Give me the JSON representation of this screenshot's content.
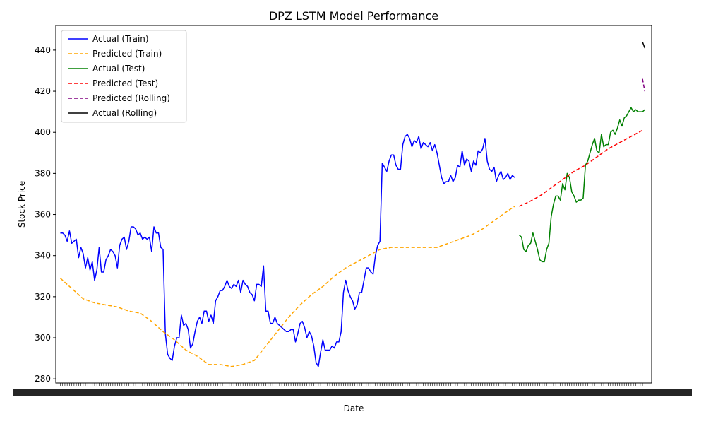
{
  "chart_data": {
    "type": "line",
    "title": "DPZ LSTM Model Performance",
    "xlabel": "Date",
    "ylabel": "Stock Price",
    "ylim": [
      278,
      452
    ],
    "yticks": [
      280,
      300,
      320,
      340,
      360,
      380,
      400,
      420,
      440
    ],
    "grid": false,
    "legend_position": "top-left",
    "series": [
      {
        "name": "Actual (Train)",
        "color": "#0000ff",
        "style": "solid",
        "x": [
          0,
          1,
          2,
          3,
          4,
          5,
          6,
          7,
          8,
          9,
          10,
          11,
          12,
          13,
          14,
          15,
          16,
          17,
          18,
          19,
          20,
          21,
          22,
          23,
          24,
          25,
          26,
          27,
          28,
          29,
          30,
          31,
          32,
          33,
          34,
          35,
          36,
          37,
          38,
          39,
          40,
          41,
          42,
          43,
          44,
          45,
          46,
          47,
          48,
          49,
          50,
          51,
          52,
          53,
          54,
          55,
          56,
          57,
          58,
          59,
          60,
          61,
          62,
          63,
          64,
          65,
          66,
          67,
          68,
          69,
          70,
          71,
          72,
          73,
          74,
          75,
          76,
          77,
          78,
          79,
          80,
          81,
          82,
          83,
          84,
          85,
          86,
          87,
          88,
          89,
          90,
          91,
          92,
          93,
          94,
          95,
          96,
          97,
          98,
          99,
          100,
          101,
          102,
          103,
          104,
          105,
          106,
          107,
          108,
          109,
          110,
          111,
          112,
          113,
          114,
          115,
          116,
          117,
          118,
          119,
          120,
          121,
          122,
          123,
          124,
          125,
          126,
          127,
          128,
          129,
          130,
          131,
          132,
          133,
          134,
          135,
          136,
          137,
          138,
          139,
          140,
          141,
          142,
          143,
          144,
          145,
          146,
          147,
          148,
          149,
          150,
          151,
          152,
          153,
          154,
          155,
          156,
          157,
          158,
          159,
          160,
          161,
          162,
          163,
          164,
          165,
          166,
          167,
          168,
          169,
          170,
          171,
          172,
          173,
          174,
          175,
          176,
          177,
          178,
          179,
          180,
          181,
          182,
          183,
          184,
          185,
          186,
          187,
          188,
          189,
          190,
          191,
          192,
          193,
          194,
          195,
          196,
          197,
          198,
          199
        ],
        "y": [
          351,
          351,
          350,
          347,
          352,
          346,
          347,
          348,
          339,
          344,
          341,
          334,
          339,
          333,
          337,
          328,
          333,
          344,
          332,
          332,
          338,
          340,
          343,
          342,
          340,
          334,
          345,
          348,
          349,
          343,
          347,
          354,
          354,
          353,
          350,
          351,
          348,
          349,
          348,
          349,
          342,
          354,
          351,
          351,
          344,
          343,
          302,
          292,
          290,
          289,
          296,
          300,
          300,
          311,
          306,
          307,
          304,
          295,
          297,
          303,
          308,
          310,
          307,
          313,
          313,
          308,
          311,
          307,
          318,
          320,
          323,
          323,
          325,
          328,
          325,
          324,
          326,
          325,
          328,
          322,
          328,
          326,
          325,
          322,
          321,
          318,
          326,
          326,
          325,
          335,
          313,
          313,
          307,
          307,
          310,
          307,
          306,
          305,
          304,
          303,
          303,
          304,
          304,
          298,
          302,
          307,
          308,
          305,
          300,
          303,
          301,
          296,
          288,
          286,
          293,
          299,
          294,
          294,
          294,
          296,
          295,
          298,
          298,
          303,
          322,
          328,
          323,
          320,
          318,
          314,
          316,
          322,
          322,
          328,
          334,
          334,
          332,
          331,
          340,
          345,
          347,
          385,
          383,
          381,
          386,
          389,
          389,
          384,
          382,
          382,
          394,
          398,
          399,
          397,
          393,
          396,
          395,
          398,
          392,
          395,
          394,
          393,
          395,
          391,
          394,
          390,
          384,
          378,
          375,
          376,
          376,
          379,
          376,
          378,
          384,
          383,
          391,
          384,
          387,
          386,
          381,
          386,
          384,
          391,
          390,
          392,
          397,
          386,
          382,
          381,
          383,
          376,
          379,
          381,
          377,
          378,
          380,
          377,
          379,
          378
        ]
      },
      {
        "name": "Predicted (Train)",
        "color": "#ffa500",
        "style": "dashed",
        "x": [
          0,
          5,
          10,
          15,
          20,
          25,
          30,
          35,
          40,
          45,
          50,
          55,
          60,
          65,
          70,
          75,
          80,
          85,
          90,
          95,
          100,
          105,
          110,
          115,
          120,
          125,
          130,
          135,
          140,
          145,
          150,
          155,
          160,
          165,
          170,
          175,
          180,
          185,
          190,
          195,
          199
        ],
        "y": [
          329,
          324,
          319,
          317,
          316,
          315,
          313,
          312,
          308,
          303,
          299,
          294,
          291,
          287,
          287,
          286,
          287,
          289,
          296,
          303,
          310,
          316,
          321,
          325,
          330,
          334,
          337,
          340,
          343,
          344,
          344,
          344,
          344,
          344,
          346,
          348,
          350,
          353,
          357,
          361,
          364
        ]
      },
      {
        "name": "Actual (Test)",
        "color": "#008000",
        "style": "solid",
        "x": [
          201,
          202,
          203,
          204,
          205,
          206,
          207,
          208,
          209,
          210,
          211,
          212,
          213,
          214,
          215,
          216,
          217,
          218,
          219,
          220,
          221,
          222,
          223,
          224,
          225,
          226,
          227,
          228,
          229,
          230,
          231,
          232,
          233,
          234,
          235,
          236,
          237,
          238,
          239,
          240,
          241,
          242,
          243,
          244,
          245,
          246,
          247,
          248,
          249,
          250,
          251,
          252,
          253,
          254,
          255,
          256
        ],
        "y": [
          350,
          349,
          343,
          342,
          345,
          346,
          351,
          347,
          343,
          338,
          337,
          337,
          343,
          346,
          359,
          365,
          369,
          369,
          367,
          375,
          372,
          380,
          378,
          371,
          369,
          366,
          367,
          367,
          368,
          384,
          386,
          390,
          394,
          397,
          391,
          390,
          399,
          393,
          394,
          394,
          400,
          401,
          399,
          402,
          406,
          403,
          407,
          408,
          410,
          412,
          410,
          411,
          410,
          410,
          410,
          411
        ]
      },
      {
        "name": "Predicted (Test)",
        "color": "#ff0000",
        "style": "dashed",
        "x": [
          201,
          205,
          210,
          215,
          220,
          225,
          230,
          235,
          240,
          245,
          250,
          255
        ],
        "y": [
          364,
          366,
          369,
          373,
          377,
          381,
          384,
          388,
          392,
          395,
          398,
          401
        ]
      },
      {
        "name": "Predicted (Rolling)",
        "color": "#800080",
        "style": "dashed",
        "x": [
          255,
          256
        ],
        "y": [
          426,
          420
        ]
      },
      {
        "name": "Actual (Rolling)",
        "color": "#000000",
        "style": "solid",
        "x": [
          255,
          256
        ],
        "y": [
          444,
          441
        ]
      }
    ]
  }
}
